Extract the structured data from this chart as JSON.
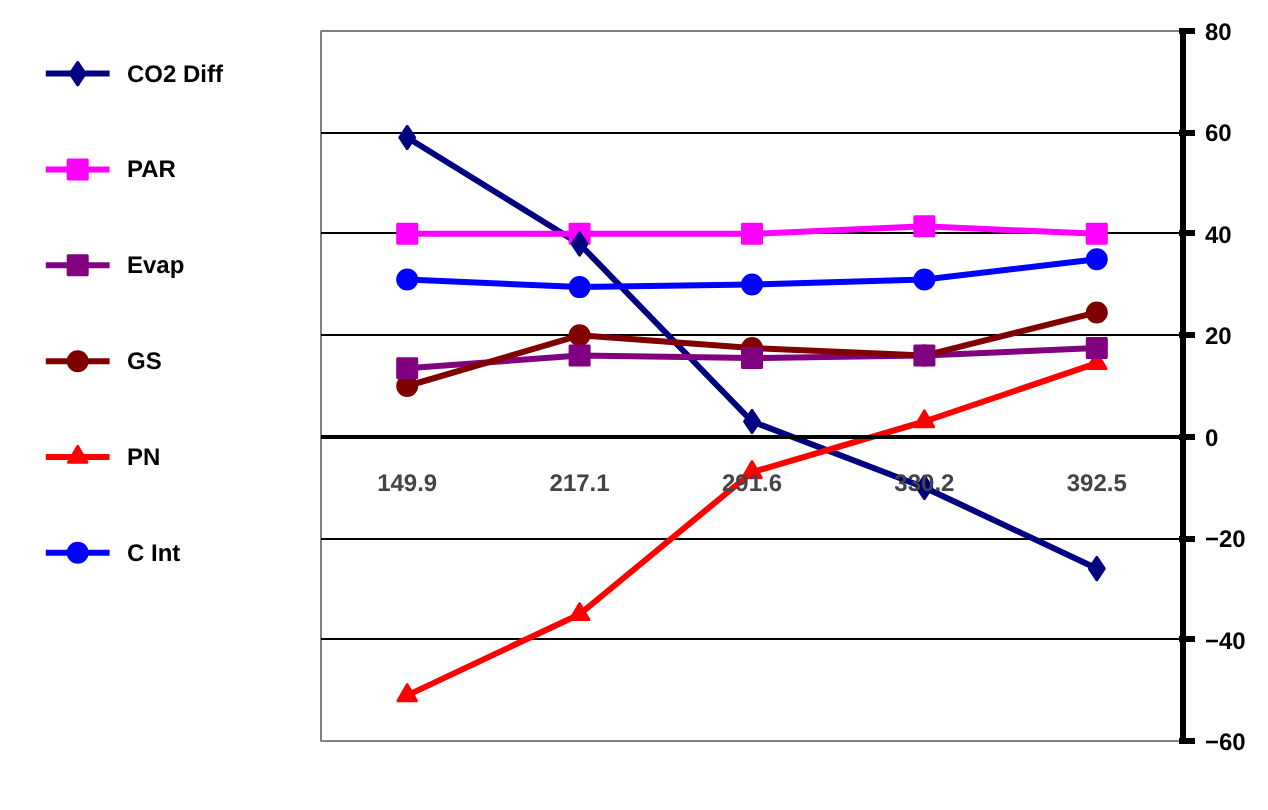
{
  "chart_data": {
    "type": "line",
    "categories": [
      "149.9",
      "217.1",
      "291.6",
      "330.2",
      "392.5"
    ],
    "series": [
      {
        "name": "CO2 Diff",
        "color": "#000080",
        "marker": "diamond",
        "values": [
          59,
          38,
          3,
          -10,
          -26
        ]
      },
      {
        "name": "PAR",
        "color": "#ff00ff",
        "marker": "square",
        "values": [
          40,
          40,
          40,
          41.5,
          40
        ]
      },
      {
        "name": "Evap",
        "color": "#800080",
        "marker": "square",
        "values": [
          13.5,
          16,
          15.5,
          16,
          17.5
        ]
      },
      {
        "name": "GS",
        "color": "#800000",
        "marker": "circle",
        "values": [
          10,
          20,
          17.5,
          16,
          24.5
        ]
      },
      {
        "name": "PN",
        "color": "#ff0000",
        "marker": "triangle",
        "values": [
          -51,
          -35,
          -7,
          3,
          14.5
        ]
      },
      {
        "name": "C Int",
        "color": "#0000ff",
        "marker": "circle",
        "values": [
          31,
          29.5,
          30,
          31,
          35
        ]
      }
    ],
    "ylim": [
      -60,
      80
    ],
    "yticks": [
      -60,
      -40,
      -20,
      0,
      20,
      40,
      60,
      80
    ],
    "grid": "y",
    "legend": "left"
  }
}
